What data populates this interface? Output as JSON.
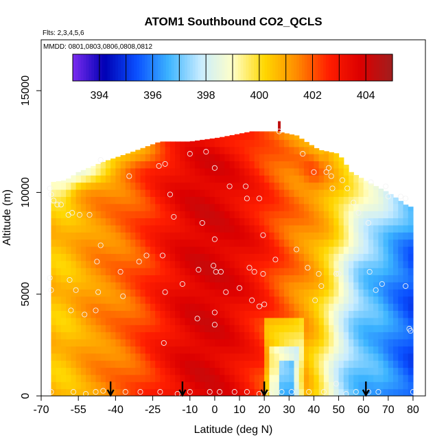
{
  "chart_data": {
    "type": "heatmap",
    "title": "ATOM1 Southbound CO2_QCLS",
    "flights_label": "Flts: 2,3,4,5,6",
    "dates_label": "MMDD: 0801,0803,0806,0808,0812",
    "xlabel": "Latitude (deg N)",
    "ylabel": "Altitude (m)",
    "xlim": [
      -70,
      85
    ],
    "ylim": [
      0,
      17500
    ],
    "x_ticks": [
      -70,
      -55,
      -40,
      -25,
      -10,
      0,
      10,
      20,
      30,
      40,
      50,
      60,
      70,
      80
    ],
    "x_tick_labels": [
      "-70",
      "-55",
      "-40",
      "-25",
      "-10",
      "0",
      "10",
      "20",
      "30",
      "40",
      "50",
      "60",
      "70",
      "80"
    ],
    "y_ticks": [
      0,
      5000,
      10000,
      15000
    ],
    "y_tick_labels": [
      "0",
      "5000",
      "10000",
      "15000"
    ],
    "colorbar": {
      "min": 393,
      "max": 405,
      "ticks": [
        394,
        396,
        398,
        400,
        402,
        404
      ],
      "tick_labels": [
        "394",
        "396",
        "398",
        "400",
        "402",
        "404"
      ],
      "colors": [
        "#7b2cf0",
        "#0000b4",
        "#0a50ff",
        "#3cb4ff",
        "#c8ecff",
        "#ffffc8",
        "#ffd700",
        "#ff8c00",
        "#ff1e00",
        "#dc0000",
        "#a01e1e"
      ]
    },
    "arrows_latitude": [
      -42,
      -13,
      20,
      61
    ],
    "obs_points": [
      [
        -66.5,
        10200
      ],
      [
        -66,
        9900
      ],
      [
        -65,
        9600
      ],
      [
        -63.5,
        9400
      ],
      [
        -62,
        9400
      ],
      [
        -59,
        8900
      ],
      [
        -57.5,
        9000
      ],
      [
        -54.5,
        8900
      ],
      [
        -50.5,
        8900
      ],
      [
        -66.5,
        5800
      ],
      [
        -66,
        5200
      ],
      [
        -58.5,
        5700
      ],
      [
        -56,
        5200
      ],
      [
        -52.5,
        4000
      ],
      [
        -58,
        4200
      ],
      [
        -48,
        4200
      ],
      [
        -47,
        5100
      ],
      [
        -46,
        7400
      ],
      [
        -47.5,
        6600
      ],
      [
        -38,
        6100
      ],
      [
        -37,
        4900
      ],
      [
        -30.5,
        6600
      ],
      [
        -27.5,
        6900
      ],
      [
        -21,
        6900
      ],
      [
        -20,
        5100
      ],
      [
        -20.5,
        2600
      ],
      [
        -46,
        11600
      ],
      [
        -34.5,
        10800
      ],
      [
        -22.5,
        11300
      ],
      [
        -20,
        11400
      ],
      [
        -18,
        9900
      ],
      [
        -16.5,
        8800
      ],
      [
        -10,
        11900
      ],
      [
        -3.5,
        12000
      ],
      [
        -5,
        8500
      ],
      [
        -13,
        5500
      ],
      [
        -6.5,
        6200
      ],
      [
        -7,
        3800
      ],
      [
        0,
        4100
      ],
      [
        0,
        3500
      ],
      [
        0.5,
        6100
      ],
      [
        -0.5,
        6400
      ],
      [
        2.5,
        6100
      ],
      [
        0,
        7700
      ],
      [
        0,
        11200
      ],
      [
        6,
        10300
      ],
      [
        12.5,
        10300
      ],
      [
        13,
        9700
      ],
      [
        14,
        6300
      ],
      [
        18,
        9700
      ],
      [
        19.5,
        7900
      ],
      [
        16,
        6100
      ],
      [
        19.5,
        6000
      ],
      [
        10,
        5300
      ],
      [
        15,
        4700
      ],
      [
        18,
        4400
      ],
      [
        20,
        4500
      ],
      [
        4.5,
        5100
      ],
      [
        24.5,
        6700
      ],
      [
        26,
        13000
      ],
      [
        35.5,
        11900
      ],
      [
        33,
        7200
      ],
      [
        40,
        11000
      ],
      [
        37.5,
        6300
      ],
      [
        42,
        6000
      ],
      [
        40.5,
        4700
      ],
      [
        43,
        5400
      ],
      [
        49,
        6000
      ],
      [
        50,
        6000
      ],
      [
        62.5,
        6100
      ],
      [
        65,
        5200
      ],
      [
        67.5,
        5500
      ],
      [
        77,
        5400
      ],
      [
        78.5,
        3300
      ],
      [
        79,
        3200
      ],
      [
        70,
        9800
      ],
      [
        75,
        9800
      ],
      [
        77,
        9700
      ],
      [
        69,
        10300
      ],
      [
        63,
        10500
      ],
      [
        62,
        8500
      ],
      [
        58,
        9000
      ],
      [
        56,
        9500
      ],
      [
        53.5,
        10200
      ],
      [
        51.5,
        10600
      ],
      [
        47.5,
        10200
      ],
      [
        45,
        11000
      ],
      [
        46,
        11200
      ],
      [
        47,
        10800
      ],
      [
        -66,
        200
      ],
      [
        -57,
        200
      ],
      [
        -52,
        100
      ],
      [
        -48,
        200
      ],
      [
        -45,
        250
      ],
      [
        -36,
        200
      ],
      [
        -30,
        200
      ],
      [
        -22,
        200
      ],
      [
        -15,
        100
      ],
      [
        -10,
        200
      ],
      [
        -2,
        200
      ],
      [
        2,
        200
      ],
      [
        8,
        200
      ],
      [
        13,
        200
      ],
      [
        18,
        100
      ],
      [
        22,
        100
      ],
      [
        27,
        200
      ],
      [
        31,
        200
      ],
      [
        38,
        200
      ],
      [
        44,
        200
      ],
      [
        49,
        600
      ],
      [
        53,
        100
      ],
      [
        57,
        200
      ],
      [
        62,
        200
      ],
      [
        66,
        200
      ],
      [
        80,
        200
      ]
    ]
  }
}
